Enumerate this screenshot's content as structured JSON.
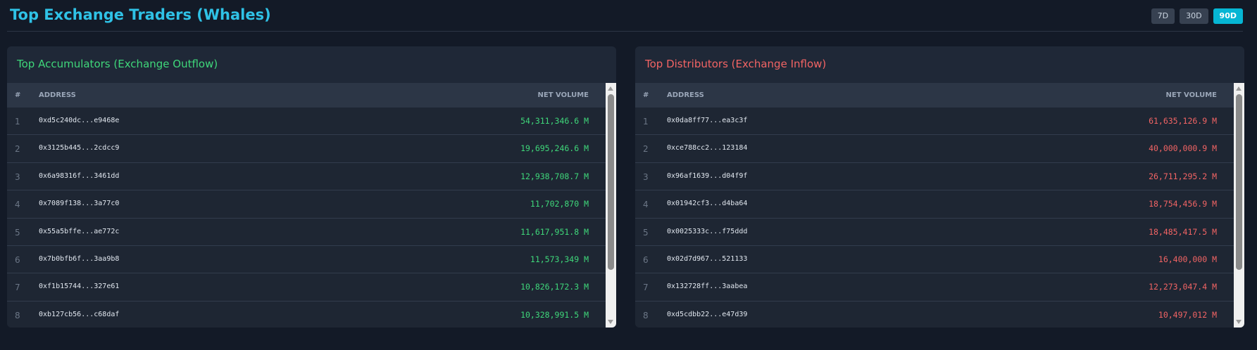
{
  "header": {
    "title": "Top Exchange Traders (Whales)",
    "ranges": [
      {
        "label": "7D",
        "active": false
      },
      {
        "label": "30D",
        "active": false
      },
      {
        "label": "90D",
        "active": true
      }
    ]
  },
  "columns": {
    "num": "#",
    "address": "ADDRESS",
    "volume": "NET VOLUME"
  },
  "accumulators": {
    "title": "Top Accumulators (Exchange Outflow)",
    "color": "#3fd77a",
    "rows": [
      {
        "num": "1",
        "address": "0xd5c240dc...e9468e",
        "volume": "54,311,346.6 M"
      },
      {
        "num": "2",
        "address": "0x3125b445...2cdcc9",
        "volume": "19,695,246.6 M"
      },
      {
        "num": "3",
        "address": "0x6a98316f...3461dd",
        "volume": "12,938,708.7 M"
      },
      {
        "num": "4",
        "address": "0x7089f138...3a77c0",
        "volume": "11,702,870 M"
      },
      {
        "num": "5",
        "address": "0x55a5bffe...ae772c",
        "volume": "11,617,951.8 M"
      },
      {
        "num": "6",
        "address": "0x7b0bfb6f...3aa9b8",
        "volume": "11,573,349 M"
      },
      {
        "num": "7",
        "address": "0xf1b15744...327e61",
        "volume": "10,826,172.3 M"
      },
      {
        "num": "8",
        "address": "0xb127cb56...c68daf",
        "volume": "10,328,991.5 M"
      }
    ]
  },
  "distributors": {
    "title": "Top Distributors (Exchange Inflow)",
    "color": "#f26464",
    "rows": [
      {
        "num": "1",
        "address": "0x0da8ff77...ea3c3f",
        "volume": "61,635,126.9 M"
      },
      {
        "num": "2",
        "address": "0xce788cc2...123184",
        "volume": "40,000,000.9 M"
      },
      {
        "num": "3",
        "address": "0x96af1639...d04f9f",
        "volume": "26,711,295.2 M"
      },
      {
        "num": "4",
        "address": "0x01942cf3...d4ba64",
        "volume": "18,754,456.9 M"
      },
      {
        "num": "5",
        "address": "0x0025333c...f75ddd",
        "volume": "18,485,417.5 M"
      },
      {
        "num": "6",
        "address": "0x02d7d967...521133",
        "volume": "16,400,000 M"
      },
      {
        "num": "7",
        "address": "0x132728ff...3aabea",
        "volume": "12,273,047.4 M"
      },
      {
        "num": "8",
        "address": "0xd5cdbb22...e47d39",
        "volume": "10,497,012 M"
      }
    ]
  },
  "icons": {
    "scroll_up": "chevron-up-icon",
    "scroll_down": "chevron-down-icon"
  }
}
